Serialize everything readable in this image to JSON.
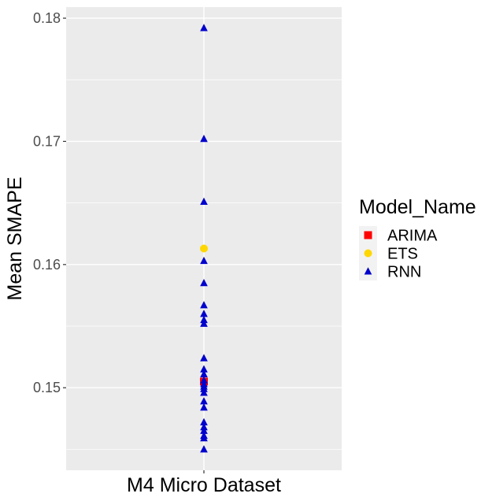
{
  "chart_data": {
    "type": "scatter",
    "title": "",
    "xlabel": "M4 Micro Dataset",
    "ylabel": "Mean SMAPE",
    "categories": [
      "M4 Micro Dataset"
    ],
    "ylim": [
      0.1433,
      0.1809
    ],
    "yticks": [
      0.15,
      0.16,
      0.17,
      0.18
    ],
    "ytick_labels": [
      "0.15",
      "0.16",
      "0.17",
      "0.18"
    ],
    "grid": true,
    "legend": {
      "title": "Model_Name",
      "position": "right"
    },
    "series": [
      {
        "name": "ARIMA",
        "color": "#ff0000",
        "marker": "square",
        "values": [
          0.1505
        ]
      },
      {
        "name": "ETS",
        "color": "#ffd700",
        "marker": "circle",
        "values": [
          0.1613
        ]
      },
      {
        "name": "RNN",
        "color": "#0000cd",
        "marker": "triangle",
        "values": [
          0.1792,
          0.1702,
          0.1651,
          0.1603,
          0.1585,
          0.1567,
          0.156,
          0.1555,
          0.1552,
          0.1524,
          0.1515,
          0.1511,
          0.1506,
          0.1503,
          0.1501,
          0.1499,
          0.1496,
          0.1489,
          0.1484,
          0.1472,
          0.1468,
          0.1465,
          0.1461,
          0.1459,
          0.145
        ]
      }
    ]
  }
}
